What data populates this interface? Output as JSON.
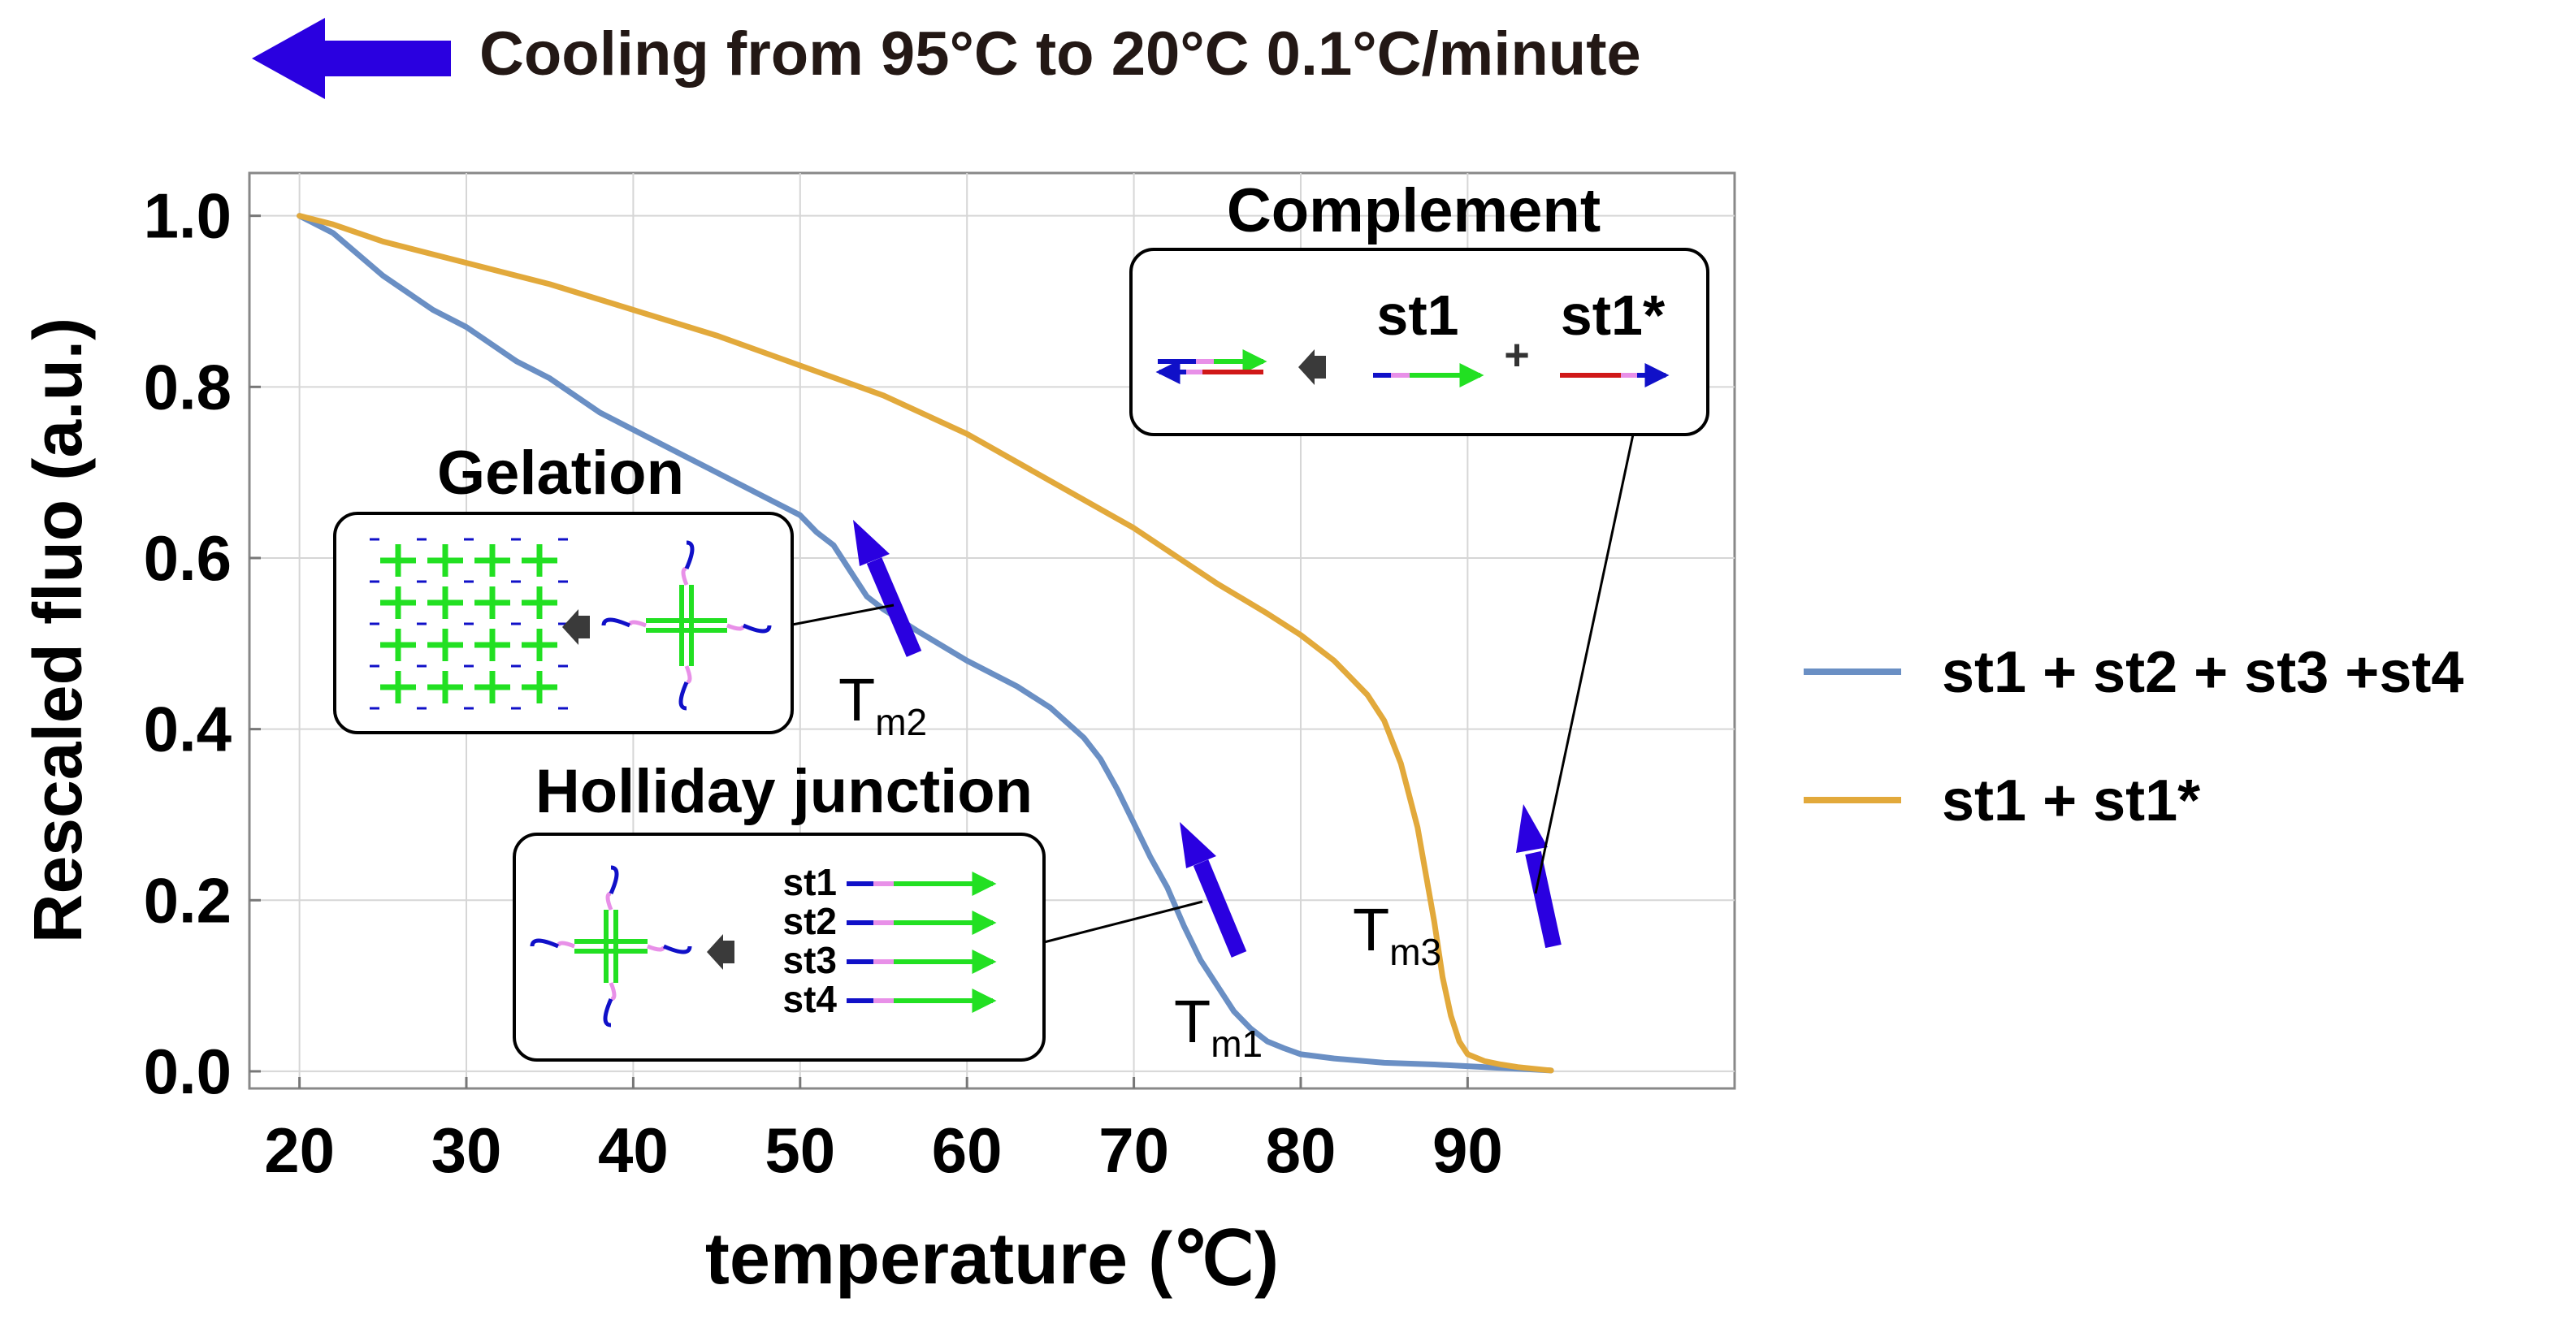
{
  "header": {
    "arrow_color": "#2a00e0",
    "text": "Cooling from 95°C to 20°C 0.1°C/minute"
  },
  "chart_data": {
    "type": "line",
    "title": "",
    "xlabel": "temperature (℃)",
    "ylabel": "Rescaled fluo (a.u.)",
    "xlim": [
      17,
      106
    ],
    "ylim": [
      -0.02,
      1.05
    ],
    "xticks": [
      20,
      30,
      40,
      50,
      60,
      70,
      80,
      90
    ],
    "yticks": [
      0.0,
      0.2,
      0.4,
      0.6,
      0.8,
      1.0
    ],
    "xtick_labels": [
      "20",
      "30",
      "40",
      "50",
      "60",
      "70",
      "80",
      "90"
    ],
    "ytick_labels": [
      "0.0",
      "0.2",
      "0.4",
      "0.6",
      "0.8",
      "1.0"
    ],
    "grid": true,
    "legend_position": "right",
    "series": [
      {
        "name": "st1 + st2 + st3 +st4",
        "color": "#6a8fc4",
        "x": [
          20,
          22,
          25,
          28,
          30,
          33,
          35,
          38,
          40,
          43,
          45,
          48,
          50,
          51,
          52,
          53,
          54,
          55,
          57,
          60,
          63,
          65,
          67,
          68,
          69,
          70,
          71,
          72,
          73,
          74,
          75,
          76,
          77,
          78,
          79,
          80,
          82,
          85,
          88,
          90,
          92,
          93,
          94,
          95
        ],
        "y": [
          1.0,
          0.98,
          0.93,
          0.89,
          0.87,
          0.83,
          0.81,
          0.77,
          0.75,
          0.72,
          0.7,
          0.67,
          0.65,
          0.63,
          0.615,
          0.585,
          0.555,
          0.54,
          0.515,
          0.48,
          0.45,
          0.425,
          0.39,
          0.365,
          0.33,
          0.29,
          0.25,
          0.215,
          0.17,
          0.13,
          0.1,
          0.07,
          0.05,
          0.035,
          0.027,
          0.02,
          0.015,
          0.01,
          0.008,
          0.006,
          0.004,
          0.003,
          0.002,
          0.001
        ]
      },
      {
        "name": "st1 + st1*",
        "color": "#e2a93b",
        "x": [
          20,
          22,
          25,
          28,
          30,
          35,
          40,
          45,
          50,
          55,
          60,
          65,
          70,
          75,
          78,
          80,
          82,
          84,
          85,
          86,
          87,
          88,
          88.5,
          89,
          89.5,
          90,
          91,
          92,
          93,
          94,
          95
        ],
        "y": [
          1.0,
          0.99,
          0.97,
          0.955,
          0.945,
          0.92,
          0.89,
          0.86,
          0.825,
          0.79,
          0.745,
          0.69,
          0.635,
          0.57,
          0.535,
          0.51,
          0.48,
          0.44,
          0.41,
          0.36,
          0.285,
          0.175,
          0.11,
          0.065,
          0.035,
          0.02,
          0.012,
          0.008,
          0.005,
          0.003,
          0.001
        ]
      }
    ],
    "annotations": {
      "tm1": {
        "main": "T",
        "sub": "m1"
      },
      "tm2": {
        "main": "T",
        "sub": "m2"
      },
      "tm3": {
        "main": "T",
        "sub": "m3"
      }
    }
  },
  "insets": {
    "complement": {
      "title": "Complement",
      "st1": "st1",
      "plus": "+",
      "st1star": "st1*"
    },
    "gelation": {
      "title": "Gelation"
    },
    "holliday": {
      "title": "Holliday junction",
      "strands": [
        "st1",
        "st2",
        "st3",
        "st4"
      ]
    }
  },
  "colors": {
    "strand_blue": "#1010c8",
    "strand_pink": "#e890e8",
    "strand_green": "#22e022",
    "strand_red": "#d01818",
    "marker_arrow": "#2a00e0",
    "gray_arrow": "#3a3a3a"
  }
}
